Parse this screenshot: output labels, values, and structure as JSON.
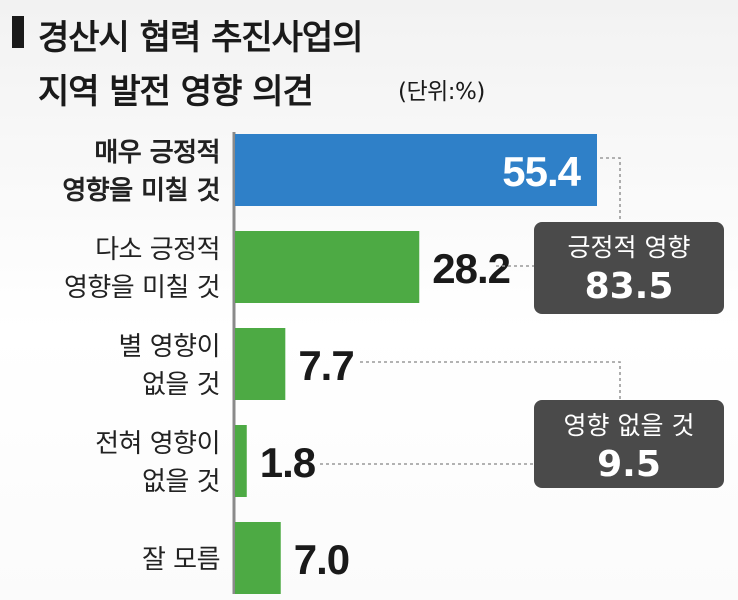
{
  "title": {
    "line1": "경산시 협력 추진사업의",
    "line2": "지역 발전 영향 의견",
    "unit": "(단위:%)"
  },
  "colors": {
    "highlight_bar": "#2f80c8",
    "bar": "#4daa44",
    "axis": "#8a8a8a",
    "callout_bg": "#4a4a4a",
    "leader": "#9a9a9a"
  },
  "chart_data": {
    "type": "bar",
    "orientation": "horizontal",
    "categories": [
      [
        "매우 긍정적",
        "영향을 미칠 것"
      ],
      [
        "다소 긍정적",
        "영향을 미칠 것"
      ],
      [
        "별 영향이",
        "없을 것"
      ],
      [
        "전혀 영향이",
        "없을 것"
      ],
      [
        "잘 모름"
      ]
    ],
    "values": [
      55.4,
      28.2,
      7.7,
      1.8,
      7.0
    ],
    "value_labels": [
      "55.4",
      "28.2",
      "7.7",
      "1.8",
      "7.0"
    ],
    "highlight_index": 0,
    "xlim": [
      0,
      60
    ],
    "callouts": [
      {
        "label": "긍정적 영향",
        "value": "83.5",
        "groups": [
          0,
          1
        ]
      },
      {
        "label": "영향 없을 것",
        "value": "9.5",
        "groups": [
          2,
          3
        ]
      }
    ]
  }
}
